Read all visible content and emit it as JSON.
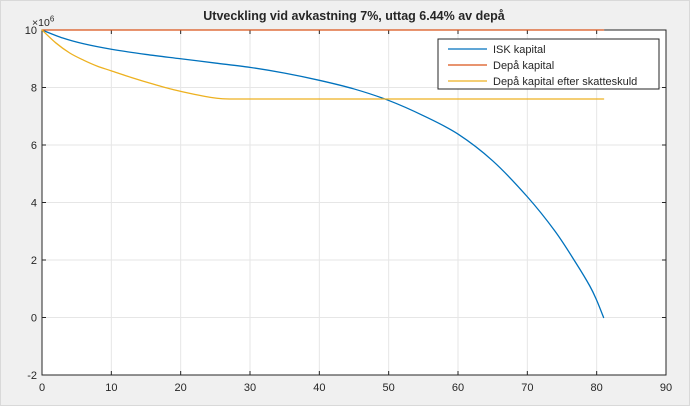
{
  "window": {
    "background_color": "#f0f0f0",
    "frame_border_color": "#d9d9d9"
  },
  "chart_data": {
    "type": "line",
    "title": "Utveckling vid avkastning 7%, uttag 6.44% av depå",
    "xlabel": "",
    "ylabel": "",
    "y_exponent": {
      "base": "×10",
      "power": "6"
    },
    "y_unit_multiplier": 1000000,
    "xlim": [
      0,
      90
    ],
    "ylim": [
      -2,
      10
    ],
    "xticks": [
      0,
      10,
      20,
      30,
      40,
      50,
      60,
      70,
      80,
      90
    ],
    "yticks": [
      -2,
      0,
      2,
      4,
      6,
      8,
      10
    ],
    "grid": true,
    "legend": {
      "position": "northeast-inside",
      "entries": [
        "ISK kapital",
        "Depå kapital",
        "Depå kapital efter skatteskuld"
      ]
    },
    "colors": {
      "plot_background": "#ffffff",
      "axis": "#262626",
      "grid": "#e6e6e6",
      "legend_background": "#ffffff",
      "legend_border": "#262626"
    },
    "series": [
      {
        "name": "ISK kapital",
        "color": "#0072BD",
        "x": [
          0,
          3,
          6,
          10,
          15,
          20,
          25,
          30,
          35,
          40,
          45,
          50,
          55,
          60,
          65,
          70,
          74,
          77,
          79,
          80,
          81
        ],
        "y": [
          10.0,
          9.72,
          9.52,
          9.33,
          9.15,
          9.0,
          8.85,
          8.7,
          8.5,
          8.25,
          7.95,
          7.55,
          7.02,
          6.38,
          5.45,
          4.2,
          3.0,
          1.9,
          1.1,
          0.6,
          0.0
        ]
      },
      {
        "name": "Depå kapital",
        "color": "#D95319",
        "x": [
          0,
          81
        ],
        "y": [
          10.0,
          10.0
        ]
      },
      {
        "name": "Depå kapital efter skatteskuld",
        "color": "#EDB120",
        "x": [
          0,
          2,
          4,
          6,
          8,
          10,
          13,
          16,
          19,
          22,
          24,
          26,
          30,
          40,
          55,
          70,
          81
        ],
        "y": [
          10.0,
          9.55,
          9.2,
          8.95,
          8.74,
          8.58,
          8.34,
          8.12,
          7.92,
          7.76,
          7.67,
          7.61,
          7.6,
          7.6,
          7.6,
          7.6,
          7.6
        ]
      }
    ]
  }
}
